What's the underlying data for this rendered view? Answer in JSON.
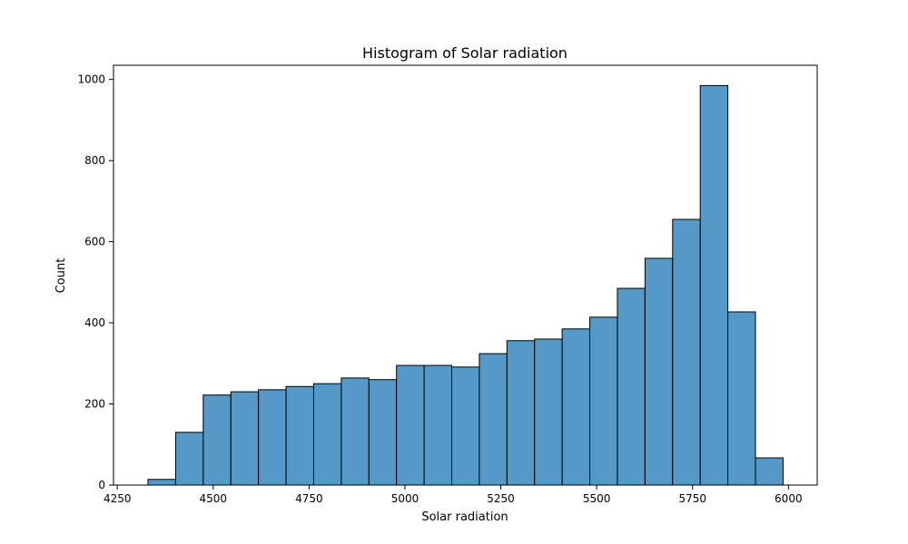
{
  "chart_data": {
    "type": "bar",
    "title": "Histogram of Solar radiation",
    "xlabel": "Solar radiation",
    "ylabel": "Count",
    "xlim": [
      4240,
      6075
    ],
    "ylim": [
      0,
      1000
    ],
    "bin_edges": [
      4330,
      4402,
      4474,
      4546,
      4618,
      4690,
      4762,
      4834,
      4906,
      4978,
      5050,
      5122,
      5194,
      5266,
      5338,
      5410,
      5482,
      5554,
      5626,
      5698,
      5770,
      5842,
      5914,
      5986
    ],
    "values": [
      14,
      130,
      222,
      230,
      235,
      243,
      250,
      264,
      260,
      295,
      295,
      291,
      324,
      356,
      360,
      385,
      414,
      485,
      559,
      655,
      985,
      427,
      67
    ],
    "xticks": [
      4250,
      4500,
      4750,
      5000,
      5250,
      5500,
      5750,
      6000
    ],
    "yticks": [
      0,
      200,
      400,
      600,
      800,
      1000
    ],
    "xtick_labels": [
      "4250",
      "4500",
      "4750",
      "5000",
      "5250",
      "5500",
      "5750",
      "6000"
    ],
    "ytick_labels": [
      "0",
      "200",
      "400",
      "600",
      "800",
      "1000"
    ],
    "bar_color": "#5499c7",
    "edge_color": "#000000",
    "grid": false
  }
}
